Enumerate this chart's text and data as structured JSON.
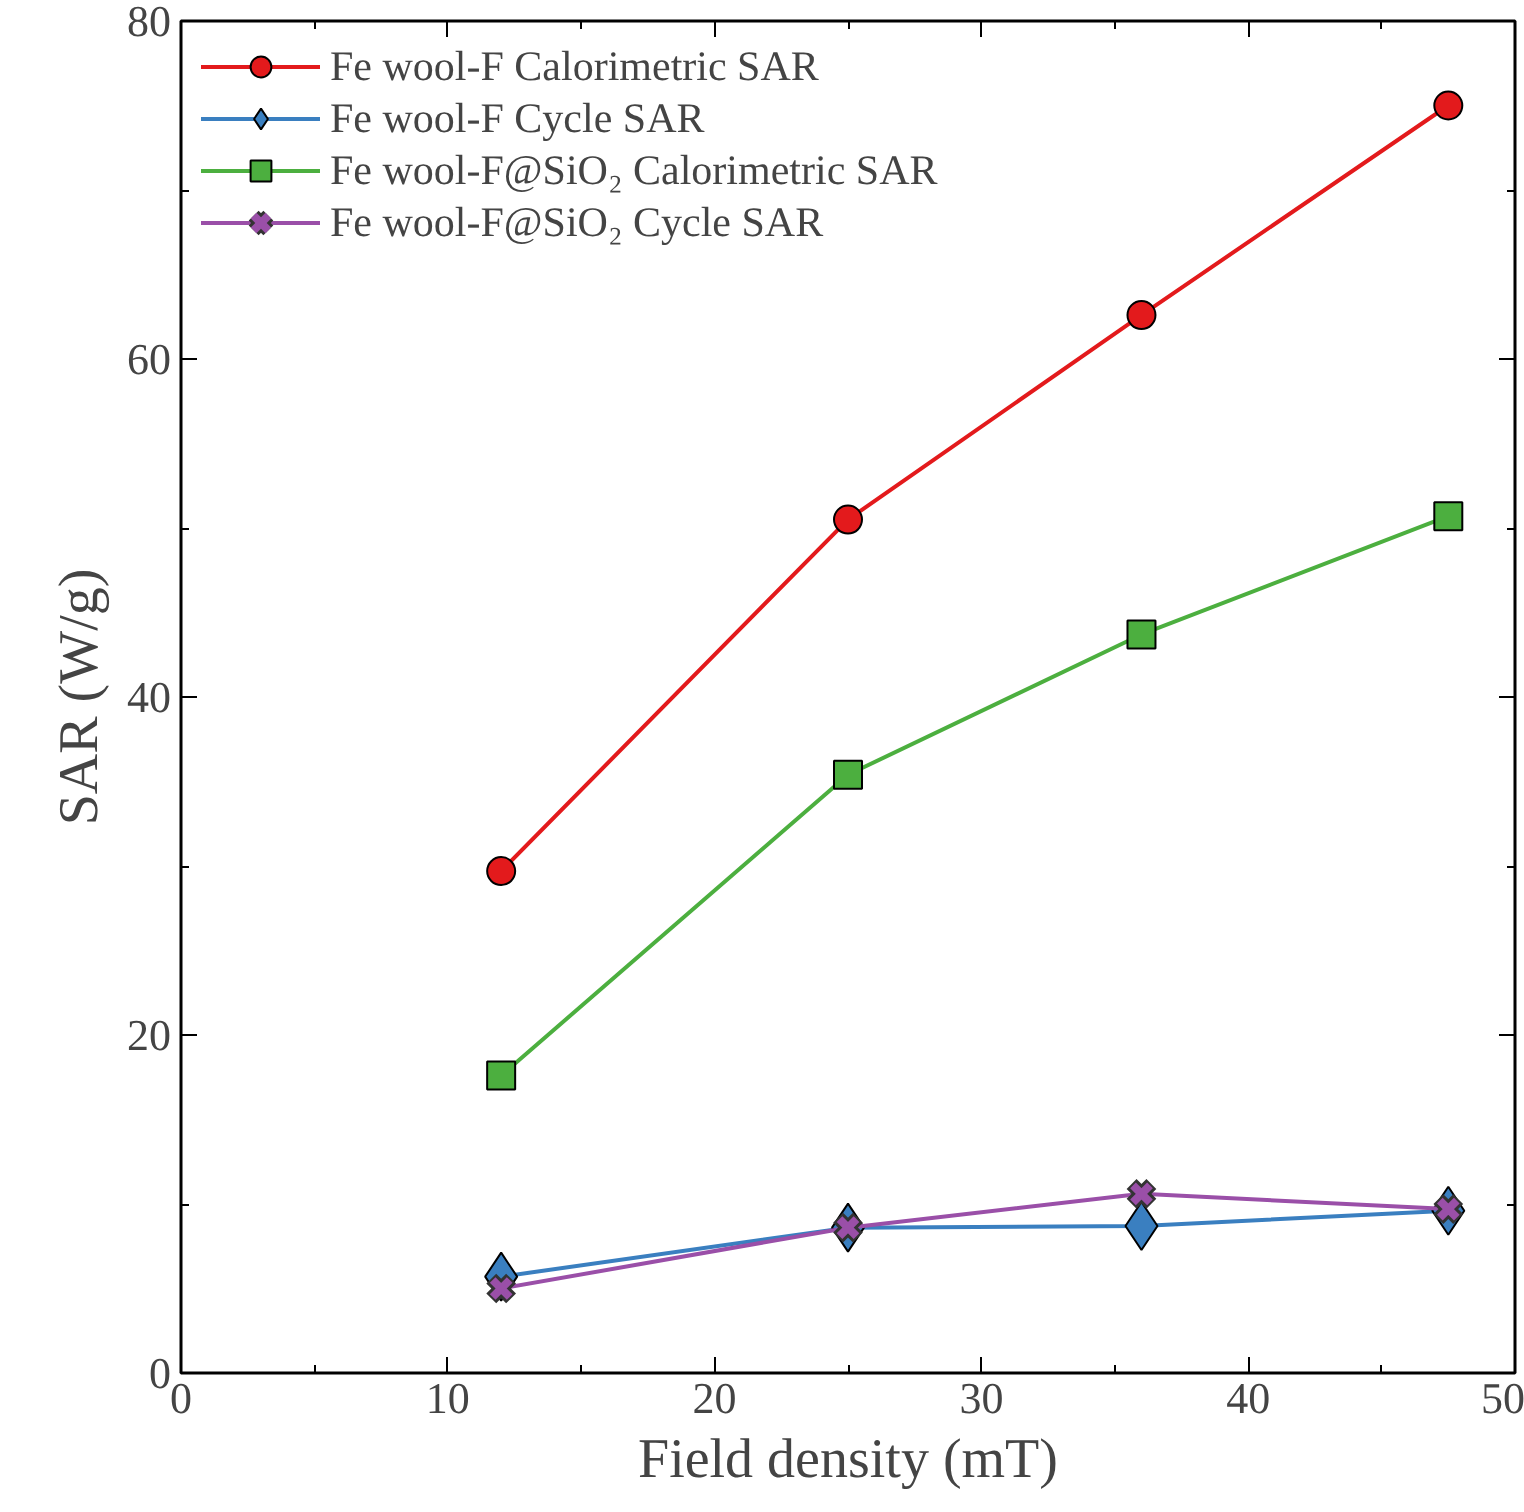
{
  "chart_data": {
    "type": "line",
    "xlabel": "Field density (mT)",
    "ylabel": "SAR (W/g)",
    "x": [
      12,
      25,
      36,
      47.5
    ],
    "xlim": [
      0,
      50
    ],
    "xticks": [
      0,
      10,
      20,
      30,
      40,
      50
    ],
    "ylim": [
      0,
      80
    ],
    "yticks": [
      0,
      20,
      40,
      60,
      80
    ],
    "grid": false,
    "legend": "top left",
    "series": [
      {
        "name": "Fe wool-F Calorimetric SAR",
        "color": "#e31a1c",
        "marker": "circle",
        "values": [
          29.7,
          50.5,
          62.6,
          75.0
        ]
      },
      {
        "name": "Fe wool-F Cycle SAR",
        "color": "#3a7fc0",
        "marker": "diamond",
        "values": [
          5.7,
          8.6,
          8.7,
          9.6
        ]
      },
      {
        "name": "Fe wool-F@SiO₂ Calorimetric SAR",
        "color": "#4caf3f",
        "marker": "square",
        "values": [
          17.6,
          35.4,
          43.7,
          50.7
        ]
      },
      {
        "name": "Fe wool-F@SiO₂ Cycle SAR",
        "color": "#9a4fa8",
        "marker": "cross",
        "values": [
          5.0,
          8.6,
          10.6,
          9.7
        ]
      }
    ]
  }
}
